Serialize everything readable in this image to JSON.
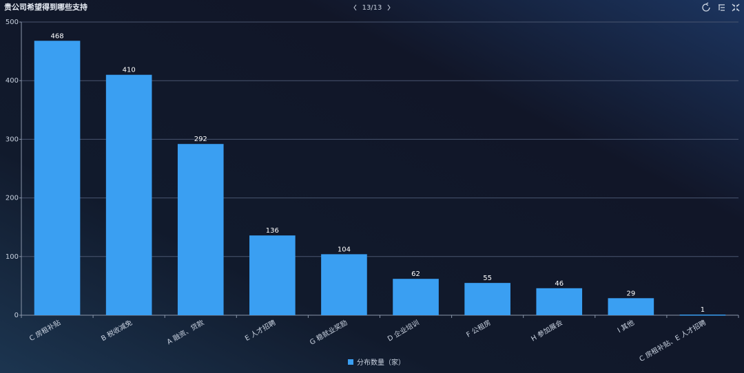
{
  "pager": "13/13",
  "chart_data": {
    "type": "bar",
    "title": "贵公司希望得到哪些支持",
    "categories": [
      "C 房租补贴",
      "B 税收减免",
      "A 融资、贷款",
      "E 人才招聘",
      "G 稳就业奖励",
      "D 企业培训",
      "F 公租房",
      "H 参加展会",
      "I 其他",
      "C 房租补贴、E 人才招聘"
    ],
    "series": [
      {
        "name": "分布数量（家）",
        "color": "#3a9ff2",
        "values": [
          468,
          410,
          292,
          136,
          104,
          62,
          55,
          46,
          29,
          1
        ]
      }
    ],
    "ylim": [
      0,
      500
    ],
    "yticks": [
      0,
      100,
      200,
      300,
      400,
      500
    ],
    "grid": true,
    "legend": "bottom"
  }
}
